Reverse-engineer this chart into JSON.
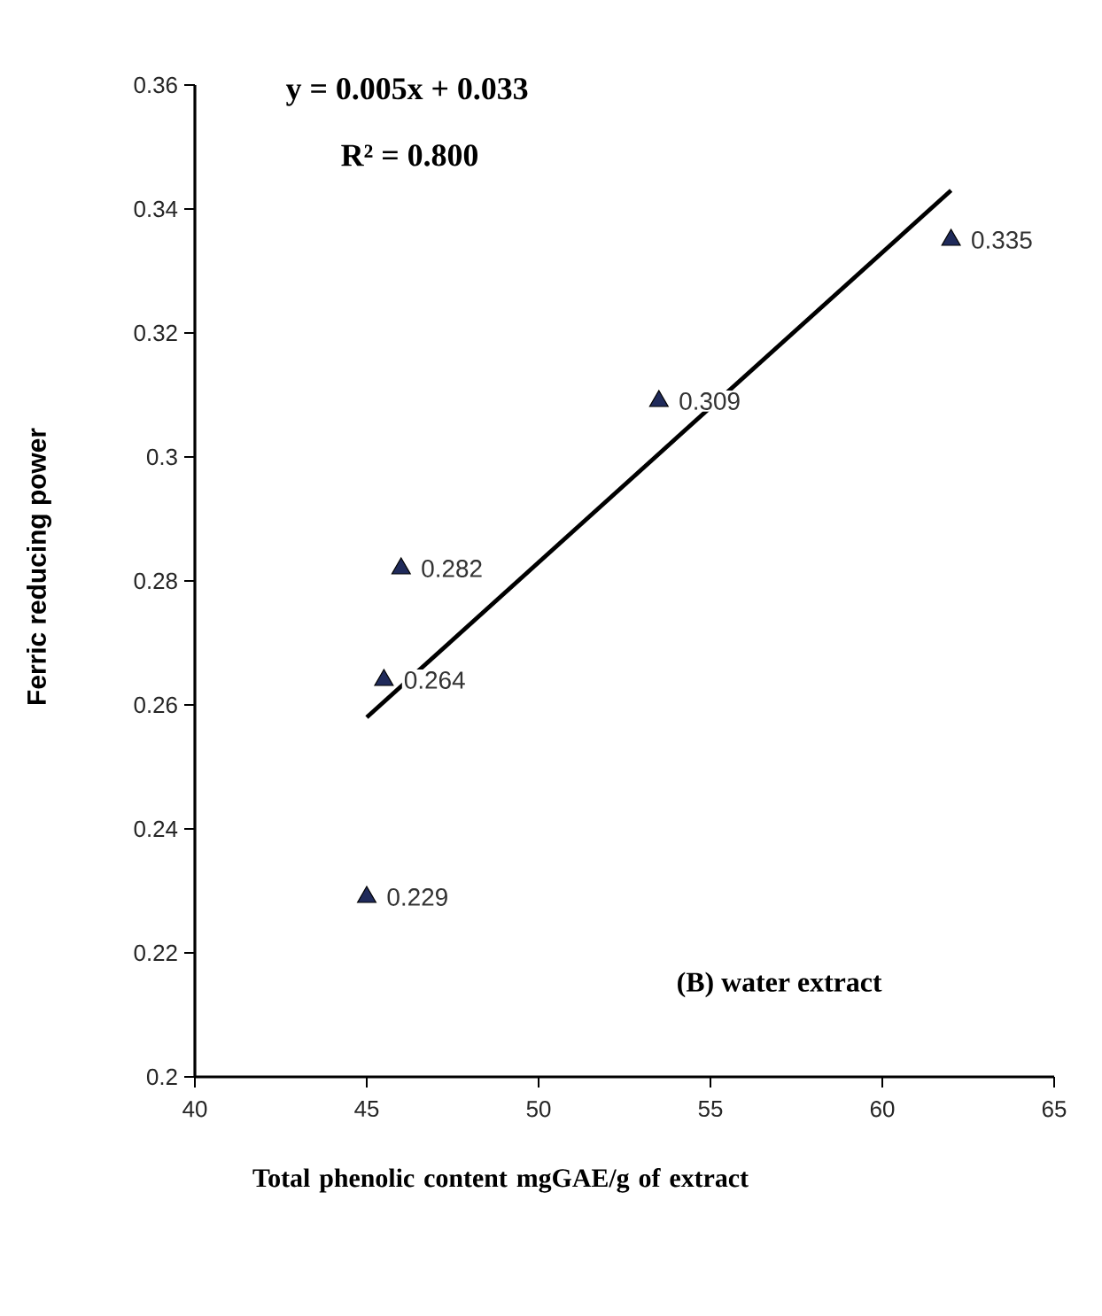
{
  "chart_data": {
    "type": "scatter",
    "xlabel": "Total phenolic content mgGAE/g  of extract",
    "ylabel": "Ferric reducing power",
    "xlim": [
      40,
      65
    ],
    "xticks": [
      40,
      45,
      50,
      55,
      60,
      65
    ],
    "ylim": [
      0.2,
      0.36
    ],
    "yticks": [
      0.2,
      0.22,
      0.24,
      0.26,
      0.28,
      0.3,
      0.32,
      0.34,
      0.36
    ],
    "annotations": [
      "y = 0.005x + 0.033",
      "R² = 0.800",
      "(B) water extract"
    ],
    "series": [
      {
        "marker": "triangle",
        "color": "#1f2a5a",
        "x": [
          45,
          45.5,
          46,
          53.5,
          62
        ],
        "values": [
          0.229,
          0.264,
          0.282,
          0.309,
          0.335
        ],
        "value_labels": [
          "0.229",
          "0.264",
          "0.282",
          "0.309",
          "0.335"
        ]
      },
      {
        "type": "line",
        "line_style": "solid",
        "marker": "none",
        "color": "#000000",
        "x": [
          45,
          62
        ],
        "values": [
          0.258,
          0.343
        ]
      }
    ]
  }
}
